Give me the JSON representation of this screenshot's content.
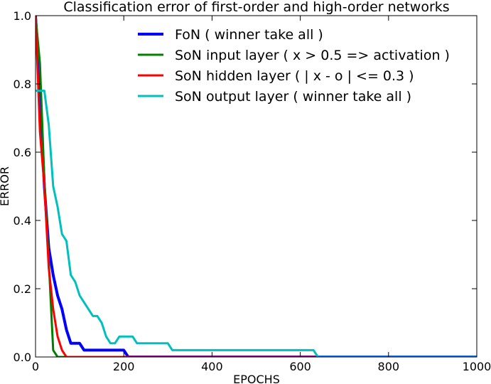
{
  "chart_data": {
    "type": "line",
    "title": "Classification error of first-order and high-order networks",
    "xlabel": "EPOCHS",
    "ylabel": "ERROR",
    "xlim": [
      0,
      1000
    ],
    "ylim": [
      0,
      1.0
    ],
    "xticks": [
      0,
      200,
      400,
      600,
      800,
      1000
    ],
    "xtick_labels": [
      "0",
      "200",
      "400",
      "600",
      "800",
      "1000"
    ],
    "yticks": [
      0,
      0.2,
      0.4,
      0.6,
      0.8,
      1.0
    ],
    "ytick_labels": [
      "0.0",
      "0.2",
      "0.4",
      "0.6",
      "0.8",
      "1.0"
    ],
    "grid": false,
    "legend_position": "top-right",
    "series": [
      {
        "name": "FoN ( winner take all )",
        "color": "#0000ff",
        "x": [
          0,
          10,
          20,
          30,
          40,
          50,
          60,
          70,
          80,
          90,
          100,
          110,
          120,
          130,
          140,
          150,
          160,
          170,
          180,
          190,
          200,
          210,
          220,
          1000
        ],
        "y": [
          1.0,
          0.78,
          0.5,
          0.32,
          0.24,
          0.18,
          0.14,
          0.08,
          0.04,
          0.04,
          0.04,
          0.02,
          0.02,
          0.02,
          0.02,
          0.02,
          0.02,
          0.02,
          0.02,
          0.02,
          0.02,
          0.0,
          0.0,
          0.0
        ]
      },
      {
        "name": "SoN input layer ( x > 0.5 => activation )",
        "color": "#008000",
        "x": [
          0,
          10,
          20,
          30,
          40,
          50,
          60,
          1000
        ],
        "y": [
          1.0,
          0.86,
          0.52,
          0.28,
          0.02,
          0.0,
          0.0,
          0.0
        ]
      },
      {
        "name": "SoN hidden layer ( | x - o | <= 0.3 )",
        "color": "#ff0000",
        "x": [
          0,
          10,
          20,
          30,
          40,
          50,
          60,
          70,
          80,
          1000
        ],
        "y": [
          1.0,
          0.66,
          0.5,
          0.26,
          0.14,
          0.06,
          0.02,
          0.0,
          0.0,
          0.0
        ]
      },
      {
        "name": "SoN output layer ( winner take all )",
        "color": "#00bfbf",
        "x": [
          0,
          10,
          20,
          30,
          40,
          50,
          60,
          70,
          80,
          90,
          100,
          110,
          120,
          130,
          140,
          150,
          160,
          170,
          180,
          190,
          200,
          210,
          220,
          230,
          240,
          250,
          260,
          270,
          280,
          290,
          300,
          310,
          320,
          330,
          340,
          350,
          360,
          370,
          380,
          390,
          400,
          420,
          440,
          460,
          480,
          500,
          520,
          540,
          560,
          580,
          600,
          620,
          630,
          640,
          650,
          1000
        ],
        "y": [
          0.78,
          0.78,
          0.78,
          0.68,
          0.5,
          0.44,
          0.36,
          0.34,
          0.24,
          0.22,
          0.18,
          0.16,
          0.14,
          0.12,
          0.12,
          0.1,
          0.06,
          0.04,
          0.04,
          0.06,
          0.06,
          0.06,
          0.06,
          0.04,
          0.04,
          0.04,
          0.04,
          0.04,
          0.04,
          0.04,
          0.04,
          0.02,
          0.02,
          0.02,
          0.02,
          0.02,
          0.02,
          0.02,
          0.02,
          0.02,
          0.02,
          0.02,
          0.02,
          0.02,
          0.02,
          0.02,
          0.02,
          0.02,
          0.02,
          0.02,
          0.02,
          0.02,
          0.02,
          0.0,
          0.0,
          0.0
        ]
      }
    ]
  }
}
